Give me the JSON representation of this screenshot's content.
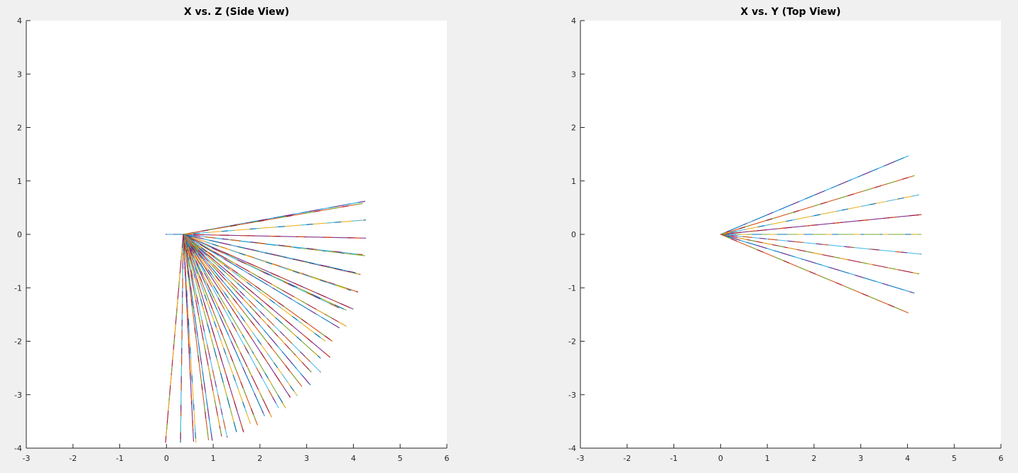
{
  "figure": {
    "background": "#f0f0f0",
    "axes_background": "#ffffff",
    "axis_color": "#262626"
  },
  "chart_data": [
    {
      "type": "line",
      "title": "X vs. Z (Side View)",
      "xlabel": "",
      "ylabel": "",
      "xlim": [
        -3,
        6
      ],
      "ylim": [
        -4,
        4
      ],
      "xticks": [
        -3,
        -2,
        -1,
        0,
        1,
        2,
        3,
        4,
        5,
        6
      ],
      "yticks": [
        -4,
        -3,
        -2,
        -1,
        0,
        1,
        2,
        3,
        4
      ],
      "grid": false,
      "legend": "none",
      "series_colors": [
        "#0072bd",
        "#d95319",
        "#edb120",
        "#7e2f8e",
        "#77ac30",
        "#4dbeee",
        "#a2142f"
      ],
      "segments": [
        {
          "from": [
            0.36,
            0.0
          ],
          "to": [
            4.25,
            0.62
          ]
        },
        {
          "from": [
            0.36,
            0.0
          ],
          "to": [
            4.2,
            0.58
          ]
        },
        {
          "from": [
            0.36,
            0.0
          ],
          "to": [
            4.27,
            0.27
          ]
        },
        {
          "from": [
            0.36,
            0.0
          ],
          "to": [
            4.27,
            -0.07
          ]
        },
        {
          "from": [
            0.36,
            0.0
          ],
          "to": [
            4.25,
            -0.4
          ]
        },
        {
          "from": [
            0.36,
            0.0
          ],
          "to": [
            4.2,
            -0.38
          ]
        },
        {
          "from": [
            0.36,
            0.0
          ],
          "to": [
            4.15,
            -0.75
          ]
        },
        {
          "from": [
            0.36,
            0.0
          ],
          "to": [
            4.05,
            -0.72
          ]
        },
        {
          "from": [
            0.36,
            0.0
          ],
          "to": [
            4.1,
            -1.08
          ]
        },
        {
          "from": [
            0.36,
            0.0
          ],
          "to": [
            3.95,
            -1.05
          ]
        },
        {
          "from": [
            0.36,
            0.0
          ],
          "to": [
            4.0,
            -1.4
          ]
        },
        {
          "from": [
            0.36,
            0.0
          ],
          "to": [
            3.85,
            -1.42
          ]
        },
        {
          "from": [
            0.36,
            0.0
          ],
          "to": [
            3.7,
            -1.38
          ]
        },
        {
          "from": [
            0.36,
            0.0
          ],
          "to": [
            3.85,
            -1.72
          ]
        },
        {
          "from": [
            0.36,
            0.0
          ],
          "to": [
            3.7,
            -1.75
          ]
        },
        {
          "from": [
            0.36,
            0.0
          ],
          "to": [
            3.55,
            -2.0
          ]
        },
        {
          "from": [
            0.36,
            0.0
          ],
          "to": [
            3.4,
            -2.0
          ]
        },
        {
          "from": [
            0.36,
            0.0
          ],
          "to": [
            3.5,
            -2.3
          ]
        },
        {
          "from": [
            0.36,
            0.0
          ],
          "to": [
            3.3,
            -2.32
          ]
        },
        {
          "from": [
            0.36,
            0.0
          ],
          "to": [
            3.3,
            -2.58
          ]
        },
        {
          "from": [
            0.36,
            0.0
          ],
          "to": [
            3.1,
            -2.58
          ]
        },
        {
          "from": [
            0.36,
            0.0
          ],
          "to": [
            3.08,
            -2.82
          ]
        },
        {
          "from": [
            0.36,
            0.0
          ],
          "to": [
            2.9,
            -2.85
          ]
        },
        {
          "from": [
            0.36,
            0.0
          ],
          "to": [
            2.8,
            -3.02
          ]
        },
        {
          "from": [
            0.36,
            0.0
          ],
          "to": [
            2.65,
            -3.05
          ]
        },
        {
          "from": [
            0.36,
            0.0
          ],
          "to": [
            2.55,
            -3.25
          ]
        },
        {
          "from": [
            0.36,
            0.0
          ],
          "to": [
            2.4,
            -3.25
          ]
        },
        {
          "from": [
            0.36,
            0.0
          ],
          "to": [
            2.25,
            -3.42
          ]
        },
        {
          "from": [
            0.36,
            0.0
          ],
          "to": [
            2.1,
            -3.4
          ]
        },
        {
          "from": [
            0.36,
            0.0
          ],
          "to": [
            1.95,
            -3.57
          ]
        },
        {
          "from": [
            0.36,
            0.0
          ],
          "to": [
            1.8,
            -3.55
          ]
        },
        {
          "from": [
            0.36,
            0.0
          ],
          "to": [
            1.65,
            -3.7
          ]
        },
        {
          "from": [
            0.36,
            0.0
          ],
          "to": [
            1.5,
            -3.7
          ]
        },
        {
          "from": [
            0.36,
            0.0
          ],
          "to": [
            1.3,
            -3.8
          ]
        },
        {
          "from": [
            0.36,
            0.0
          ],
          "to": [
            1.18,
            -3.78
          ]
        },
        {
          "from": [
            0.36,
            0.0
          ],
          "to": [
            0.98,
            -3.86
          ]
        },
        {
          "from": [
            0.36,
            0.0
          ],
          "to": [
            0.9,
            -3.85
          ]
        },
        {
          "from": [
            0.36,
            0.0
          ],
          "to": [
            0.63,
            -3.9
          ]
        },
        {
          "from": [
            0.36,
            0.0
          ],
          "to": [
            0.58,
            -3.88
          ]
        },
        {
          "from": [
            0.36,
            0.0
          ],
          "to": [
            0.3,
            -3.9
          ]
        },
        {
          "from": [
            0.36,
            0.0
          ],
          "to": [
            0.3,
            -3.85
          ]
        },
        {
          "from": [
            0.36,
            0.0
          ],
          "to": [
            -0.02,
            -3.9
          ]
        },
        {
          "from": [
            0.36,
            0.0
          ],
          "to": [
            -0.02,
            0.0
          ]
        }
      ]
    },
    {
      "type": "line",
      "title": "X vs. Y (Top View)",
      "xlabel": "",
      "ylabel": "",
      "xlim": [
        -3,
        6
      ],
      "ylim": [
        -4,
        4
      ],
      "xticks": [
        -3,
        -2,
        -1,
        0,
        1,
        2,
        3,
        4,
        5,
        6
      ],
      "yticks": [
        -4,
        -3,
        -2,
        -1,
        0,
        1,
        2,
        3,
        4
      ],
      "grid": false,
      "legend": "none",
      "series_colors": [
        "#0072bd",
        "#d95319",
        "#edb120",
        "#7e2f8e",
        "#77ac30",
        "#4dbeee",
        "#a2142f"
      ],
      "segments": [
        {
          "from": [
            0.0,
            0.0
          ],
          "to": [
            4.02,
            1.47
          ]
        },
        {
          "from": [
            0.0,
            0.0
          ],
          "to": [
            4.15,
            1.1
          ]
        },
        {
          "from": [
            0.0,
            0.0
          ],
          "to": [
            4.25,
            0.74
          ]
        },
        {
          "from": [
            0.0,
            0.0
          ],
          "to": [
            4.3,
            0.37
          ]
        },
        {
          "from": [
            0.0,
            0.0
          ],
          "to": [
            4.3,
            0.0
          ]
        },
        {
          "from": [
            0.0,
            0.0
          ],
          "to": [
            4.3,
            -0.37
          ]
        },
        {
          "from": [
            0.0,
            0.0
          ],
          "to": [
            4.25,
            -0.74
          ]
        },
        {
          "from": [
            0.0,
            0.0
          ],
          "to": [
            4.15,
            -1.1
          ]
        },
        {
          "from": [
            0.0,
            0.0
          ],
          "to": [
            4.02,
            -1.47
          ]
        }
      ]
    }
  ]
}
